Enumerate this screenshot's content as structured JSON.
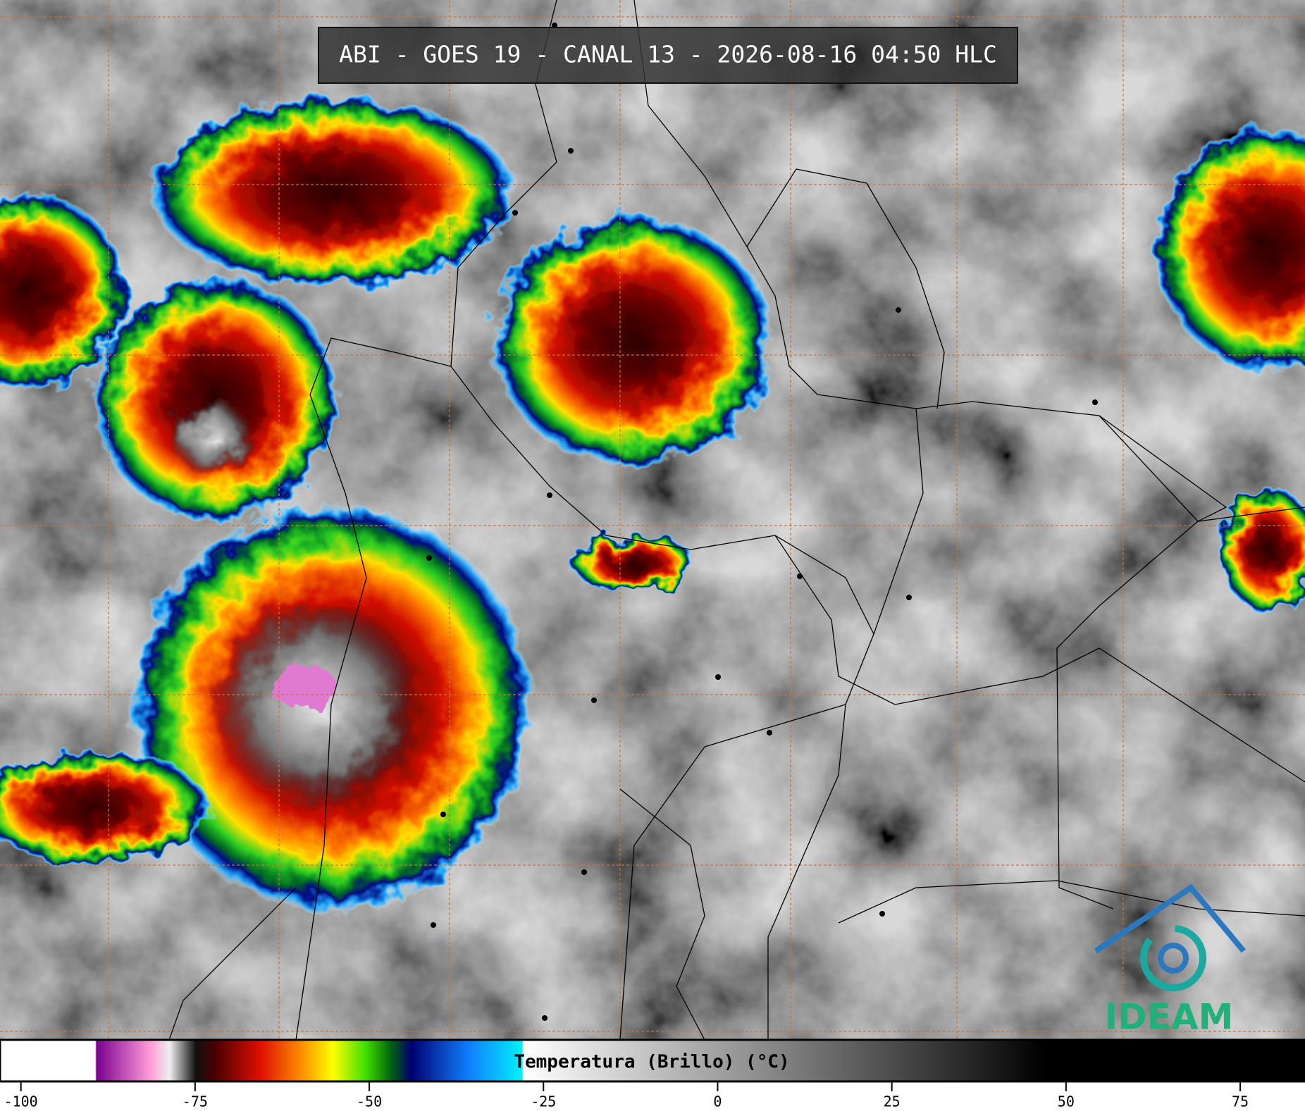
{
  "header": {
    "title": "ABI - GOES 19 - CANAL 13 - 2026-08-16 04:50 HLC"
  },
  "colorbar": {
    "label": "Temperatura (Brillo) (°C)",
    "lim": [
      -103,
      84.3
    ],
    "ticks": [
      -100,
      -75,
      -50,
      -25,
      0,
      25,
      50,
      75
    ]
  },
  "logo": {
    "text": "IDEAM"
  }
}
